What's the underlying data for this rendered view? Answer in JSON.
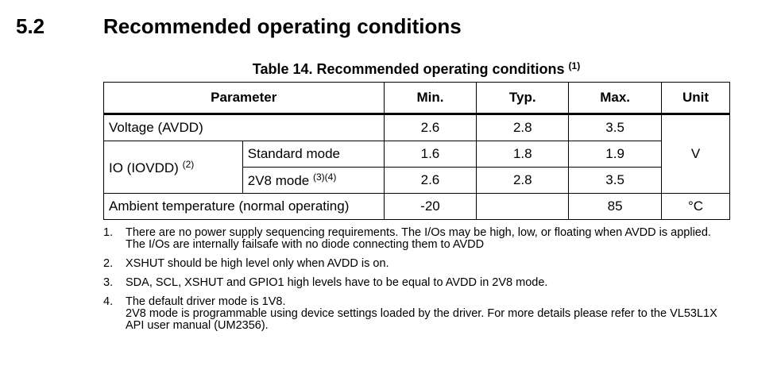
{
  "section": {
    "number": "5.2",
    "title": "Recommended operating conditions"
  },
  "table": {
    "caption": "Table 14. Recommended operating conditions",
    "caption_ref": "(1)",
    "headers": {
      "parameter": "Parameter",
      "min": "Min.",
      "typ": "Typ.",
      "max": "Max.",
      "unit": "Unit"
    },
    "rows": {
      "voltage": {
        "parameter": "Voltage (AVDD)",
        "min": "2.6",
        "typ": "2.8",
        "max": "3.5"
      },
      "io": {
        "parameter": "IO (IOVDD)",
        "parameter_ref": "(2)",
        "standard": {
          "mode": "Standard mode",
          "min": "1.6",
          "typ": "1.8",
          "max": "1.9"
        },
        "v2v8": {
          "mode": "2V8 mode",
          "mode_ref": "(3)(4)",
          "min": "2.6",
          "typ": "2.8",
          "max": "3.5"
        }
      },
      "voltage_unit": "V",
      "temperature": {
        "parameter": "Ambient temperature (normal operating)",
        "min": "-20",
        "typ": "",
        "max": "85",
        "unit": "°C"
      }
    }
  },
  "notes": [
    {
      "num": "1.",
      "text": "There are no power supply sequencing requirements. The I/Os may be high, low, or floating when AVDD is applied. The I/Os are internally failsafe with no diode connecting them to AVDD"
    },
    {
      "num": "2.",
      "text": "XSHUT should be high level only when AVDD is on."
    },
    {
      "num": "3.",
      "text": "SDA, SCL, XSHUT and GPIO1 high levels have to be equal to AVDD in 2V8 mode."
    },
    {
      "num": "4.",
      "line1": "The default driver mode is 1V8.",
      "line2": "2V8 mode is programmable using device settings loaded by the driver. For more details please refer to the VL53L1X API user manual (UM2356)."
    }
  ]
}
